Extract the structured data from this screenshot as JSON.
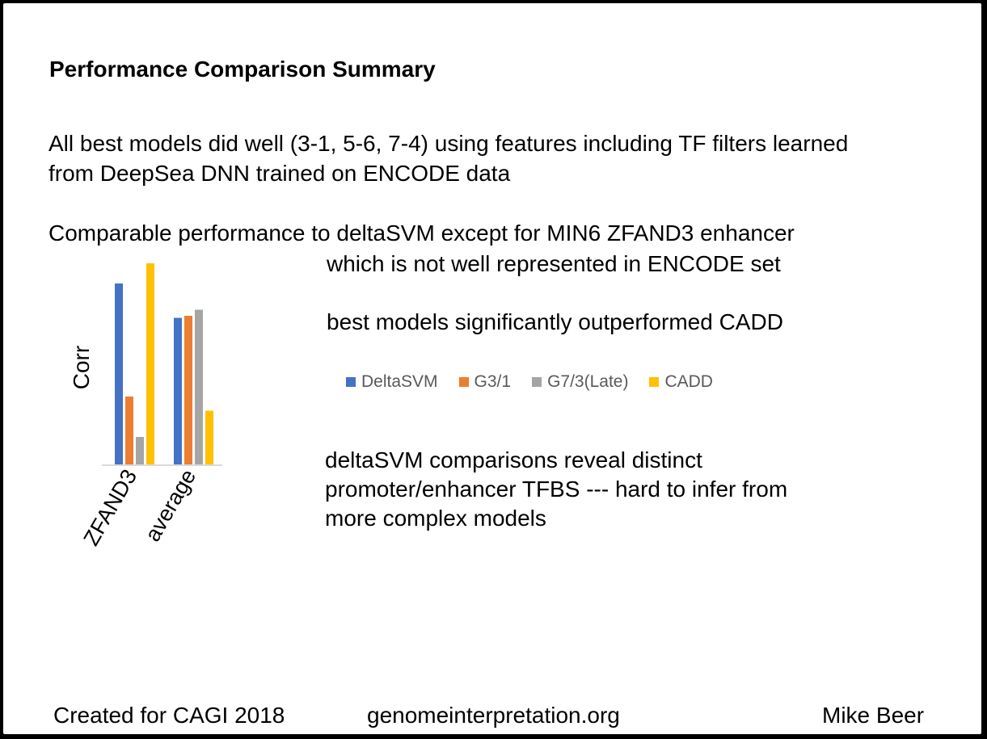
{
  "slide": {
    "title": "Performance Comparison Summary",
    "para1": [
      "All best models did well (3-1, 5-6, 7-4) using features including TF filters learned",
      "from DeepSea DNN trained on ENCODE data"
    ],
    "para2_line1": "Comparable performance to deltaSVM except for MIN6 ZFAND3 enhancer",
    "para2_line2": "which is not well represented in ENCODE set",
    "para3": "best models significantly outperformed CADD",
    "para4": [
      "deltaSVM comparisons reveal distinct",
      "promoter/enhancer TFBS ---  hard to infer from",
      "more complex models"
    ]
  },
  "footer": {
    "left": "Created for CAGI 2018",
    "center": "genomeinterpretation.org",
    "right": "Mike Beer"
  },
  "colors": {
    "DeltaSVM": "#4472C4",
    "G3/1": "#ED7D31",
    "G7/3(Late)": "#A5A5A5",
    "CADD": "#FFC000"
  },
  "chart_data": {
    "type": "bar",
    "ylabel": "Corr",
    "categories": [
      "ZFAND3",
      "average"
    ],
    "series": [
      {
        "name": "DeltaSVM",
        "values": [
          0.9,
          0.73
        ]
      },
      {
        "name": "G3/1",
        "values": [
          0.34,
          0.74
        ]
      },
      {
        "name": "G7/3(Late)",
        "values": [
          0.14,
          0.77
        ]
      },
      {
        "name": "CADD",
        "values": [
          1.0,
          0.27
        ]
      }
    ],
    "ylim": [
      0,
      1
    ],
    "grid": false,
    "legend": "right"
  }
}
